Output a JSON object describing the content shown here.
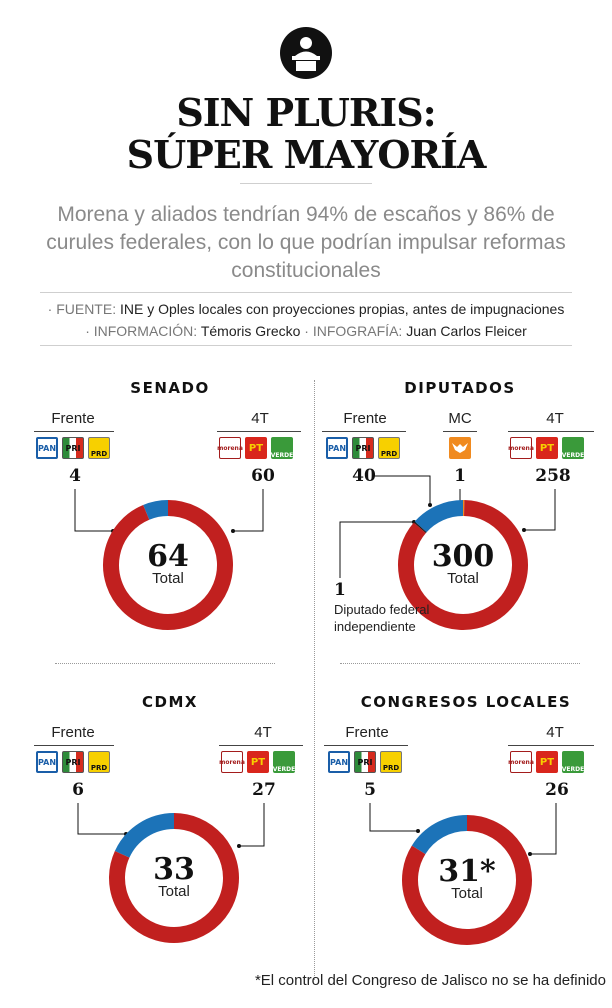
{
  "header": {
    "icon": "podium-speaker-icon",
    "title_line1": "SIN PLURIS:",
    "title_line2": "SÚPER MAYORÍA",
    "subtitle": "Morena y aliados tendrían 94% de escaños y 86% de curules federales, con lo que podrían impulsar reformas constitucionales",
    "source_label": "· FUENTE:",
    "source_text": "INE y Oples locales con proyecciones propias, antes de impugnaciones",
    "info_label": "· INFORMACIÓN:",
    "info_text": "Témoris Grecko",
    "infographic_label": "· INFOGRAFÍA:",
    "infographic_text": "Juan Carlos Fleicer"
  },
  "logos": {
    "pan": "PAN",
    "pri": "PRI",
    "prd": "PRD",
    "morena": "morena",
    "pt": "PT",
    "verde": "VERDE"
  },
  "colors": {
    "fourT": "#c1201f",
    "frente": "#1c73b8",
    "mc": "#f08a1f",
    "independent": "#1a1a1a"
  },
  "chart_data": [
    {
      "type": "pie",
      "title": "SENADO",
      "total_value": "64",
      "total_label": "Total",
      "series": [
        {
          "name": "Frente",
          "value": 4,
          "color": "#1c73b8"
        },
        {
          "name": "4T",
          "value": 60,
          "color": "#c1201f"
        }
      ]
    },
    {
      "type": "pie",
      "title": "DIPUTADOS",
      "total_value": "300",
      "total_label": "Total",
      "series": [
        {
          "name": "Frente",
          "value": 40,
          "color": "#1c73b8"
        },
        {
          "name": "MC",
          "value": 1,
          "color": "#f08a1f"
        },
        {
          "name": "4T",
          "value": 258,
          "color": "#c1201f"
        },
        {
          "name": "Diputado federal independiente",
          "value": 1,
          "color": "#1a1a1a"
        }
      ],
      "annotation_value": "1",
      "annotation_text": "Diputado federal independiente"
    },
    {
      "type": "pie",
      "title": "CDMX",
      "total_value": "33",
      "total_label": "Total",
      "series": [
        {
          "name": "Frente",
          "value": 6,
          "color": "#1c73b8"
        },
        {
          "name": "4T",
          "value": 27,
          "color": "#c1201f"
        }
      ]
    },
    {
      "type": "pie",
      "title": "CONGRESOS LOCALES",
      "total_value": "31*",
      "total_label": "Total",
      "series": [
        {
          "name": "Frente",
          "value": 5,
          "color": "#1c73b8"
        },
        {
          "name": "4T",
          "value": 26,
          "color": "#c1201f"
        }
      ]
    }
  ],
  "footnote": "*El control del Congreso de Jalisco no se ha definido"
}
